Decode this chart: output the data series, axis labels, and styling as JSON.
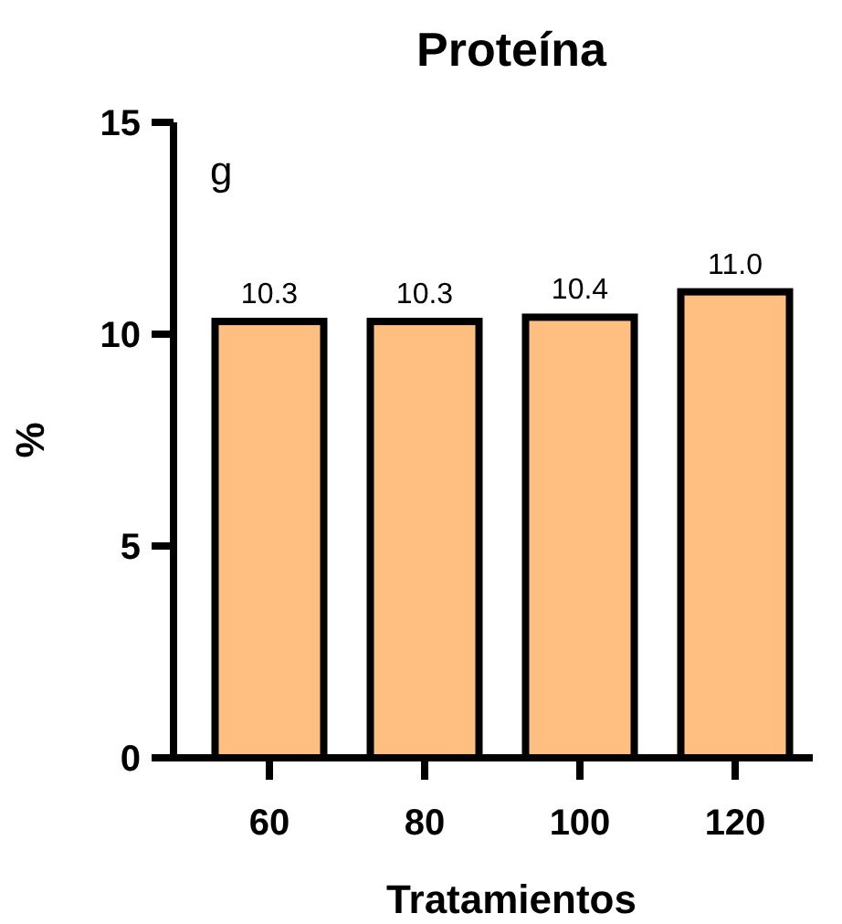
{
  "chart_data": {
    "type": "bar",
    "title": "Proteína",
    "xlabel": "Tratamientos",
    "ylabel": "%",
    "categories": [
      "60",
      "80",
      "100",
      "120"
    ],
    "values": [
      10.3,
      10.3,
      10.4,
      11.0
    ],
    "value_labels": [
      "10.3",
      "10.3",
      "10.4",
      "11.0"
    ],
    "color": "#ffbf80",
    "ylim": [
      0,
      15
    ],
    "yticks": [
      0,
      5,
      10,
      15
    ],
    "annotations": [
      "g"
    ],
    "grid": false
  }
}
